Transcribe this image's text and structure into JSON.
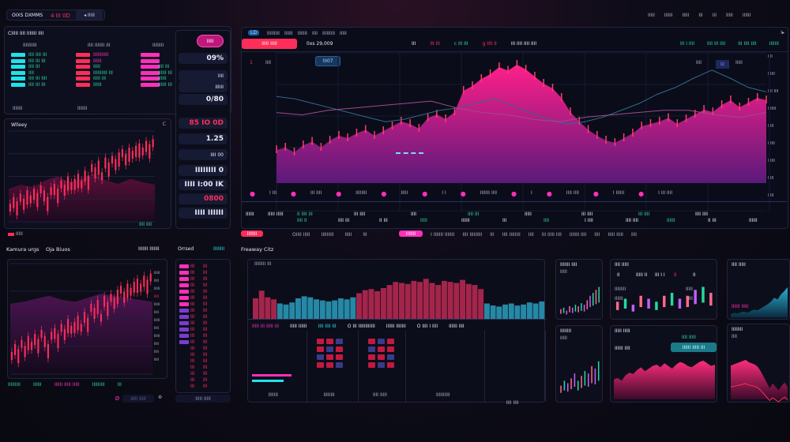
{
  "header": {
    "title": "OIXS DXMMS",
    "value": "4 III 0D",
    "button": "◂ IIIII",
    "top_right": [
      "IIIII",
      "IIIIII",
      "IIIII",
      "III",
      "III",
      "IIIII",
      "IIIIII"
    ]
  },
  "orderbook": {
    "heading": "CIIIII IIII IIIIIII IIII",
    "columns": [
      {
        "title": "IIIIIIIIII",
        "rows": [
          "IIII IIII III",
          "IIII III III",
          "IIII III",
          "IIII",
          "IIII III IIII",
          "IIII III III"
        ],
        "footer": "IIIIIII",
        "color": "#1ee3ea"
      },
      {
        "title": "IIII IIIIIII III",
        "rows": [
          "IIIIIIIIIII",
          "IIIIII",
          "IIIII",
          "IIIIIIIIII III",
          "IIIII III",
          "IIIIII"
        ],
        "footer": "IIIIIII",
        "color": "#ff2d5a"
      },
      {
        "title": "IIIIIIII",
        "rows": [
          "",
          "",
          "IIII III",
          "IIIIII III",
          "IIIIII",
          "IIIIII III"
        ],
        "footer": "",
        "color": "#ff2fb9"
      }
    ]
  },
  "side_stats": {
    "pill": "IIIII",
    "items": [
      "09%",
      "IIII",
      "IIIIII",
      "0/80",
      "85 IO 0D",
      "1.25",
      "IIII 00",
      "IIIIIIII 0",
      "IIII I:00 IK",
      "0800",
      "IIII IIIIII"
    ]
  },
  "left_chart": {
    "title": "Wlleey",
    "corner": "C",
    "legend": "IIIII",
    "footer": "IIII IIII"
  },
  "main": {
    "tab": "LD",
    "menu": [
      "IIIIIIIII",
      "IIIIII",
      "IIIIIII",
      "IIII",
      "IIIIIIIII",
      "IIIII"
    ],
    "trade_button": "IIIII IIIII",
    "price": "0xs 29,009",
    "tickers": [
      {
        "t": "III",
        "c": "wh"
      },
      {
        "t": "III III",
        "c": "red"
      },
      {
        "t": "c III III",
        "c": "grn"
      },
      {
        "t": "g IIII II",
        "c": "red"
      },
      {
        "t": "III IIII IIII IIII",
        "c": "wh"
      }
    ],
    "right_tickers": [
      "III I IIII",
      "IIII III IIII",
      "III IIII IIII",
      "IIIIIII"
    ],
    "interval": "1",
    "timeframe": "IIII",
    "select": "0I07",
    "chart_right": [
      "IIII",
      "IIIIII",
      "IIII IIII",
      "IIIIIII",
      "IIIII",
      "IIIIII",
      "IIIIII",
      "IIIII",
      "IIIII"
    ],
    "chart_controls": [
      "IIII",
      "Iz",
      "IIIII"
    ],
    "chart_data": {
      "type": "area",
      "area_values": [
        28,
        30,
        26,
        32,
        35,
        30,
        36,
        40,
        38,
        42,
        45,
        40,
        44,
        48,
        52,
        50,
        46,
        55,
        58,
        54,
        60,
        78,
        82,
        88,
        92,
        98,
        95,
        100,
        96,
        90,
        84,
        80,
        72,
        60,
        52,
        45,
        40,
        36,
        34,
        38,
        42,
        48,
        50,
        52,
        55,
        50,
        54,
        58,
        62,
        60,
        66,
        70,
        64,
        68,
        72,
        70
      ],
      "line_values": [
        72,
        70,
        66,
        62,
        58,
        54,
        50,
        52,
        56,
        60,
        62,
        66,
        70,
        64,
        58,
        52,
        48,
        50,
        54,
        60,
        66,
        74,
        80,
        88,
        95,
        88,
        80,
        76
      ],
      "overlay_values": [
        58,
        56,
        60,
        62,
        64,
        66,
        68,
        62,
        58,
        56,
        52,
        50,
        54,
        56,
        58,
        60,
        60,
        56,
        54,
        58
      ],
      "ylim": [
        0,
        110
      ]
    },
    "icon_row": [
      "I III",
      "III IIII",
      "IIIIIIII",
      "IIIII",
      "I I",
      "IIIIIII IIII",
      "I",
      "IIII IIII",
      "I IIIIII",
      "I III IIII"
    ],
    "table": [
      [
        "IIIIII",
        "IIIII IIIII"
      ],
      [
        "II IIII III",
        "III IIII",
        "IIII",
        "IIII III",
        "IIIII",
        "III IIII",
        "III IIII",
        "IIII IIII"
      ],
      [
        "IIII II",
        "IIII III",
        "II III",
        "IIIII",
        "IIIIII",
        "III",
        "IIII",
        "I IIII",
        "IIII IIII",
        "IIIIII",
        "II III",
        "IIIIII"
      ]
    ]
  },
  "button_row": {
    "red": "IIIIIII",
    "labels": [
      "OIIII IIIII",
      "IIIIIIIII",
      "IIIII",
      "III"
    ],
    "pink": "IIIIIII",
    "rest": [
      "I IIIIIII IIIIIII",
      "IIII IIIIIIIII",
      "III",
      "IIII IIIIIIII",
      "IIII",
      "III IIIII IIII",
      "IIIIIII IIII",
      "IIII",
      "IIIII IIIII",
      "IIII"
    ]
  },
  "bottom_left": {
    "title": "Kamura urgs",
    "subtitle": "Oja Biuos",
    "right": "IIIIIII IIIIIII",
    "chart_data": {
      "type": "candlestick",
      "values": [
        22,
        30,
        25,
        34,
        28,
        38,
        32,
        40,
        35,
        44,
        38,
        30,
        42,
        46,
        40,
        50,
        45,
        55,
        48,
        52,
        58,
        50,
        62,
        56,
        70,
        66,
        74,
        60,
        78,
        72,
        80,
        76,
        84,
        88,
        82,
        90,
        86,
        92,
        95,
        90,
        98,
        94,
        100
      ],
      "ylim": [
        0,
        110
      ]
    },
    "axis": [
      "IIIIII",
      "IIIII",
      "IIIIII",
      "IIIII",
      "IIIIII",
      "IIIII",
      "IIIIII",
      "IIIII",
      "IIIIII",
      "IIIII",
      "IIIII",
      "IIIII"
    ],
    "footer": [
      "IIIIIIIII",
      "IIIIII",
      "IIIIII IIIII IIIII",
      "IIIIIIIII",
      "III"
    ],
    "search": "IIIII IIIII"
  },
  "orders": {
    "title": "Orrsed",
    "link": "IIIIIIII",
    "rows": [
      [
        "III",
        "III"
      ],
      [
        "III",
        "III"
      ],
      [
        "III",
        "III"
      ],
      [
        "III",
        "III"
      ],
      [
        "III",
        "III"
      ],
      [
        "III",
        "III"
      ],
      [
        "III",
        "III"
      ],
      [
        "III",
        "III"
      ],
      [
        "III",
        "III"
      ],
      [
        "III",
        "III"
      ],
      [
        "III",
        "III"
      ],
      [
        "III",
        "III"
      ],
      [
        "III",
        "III"
      ],
      [
        "III",
        "III"
      ],
      [
        "III",
        "III"
      ],
      [
        "III",
        "III"
      ],
      [
        "III",
        "III"
      ],
      [
        "III",
        "III"
      ],
      [
        "III",
        "III"
      ],
      [
        "III",
        "III"
      ]
    ],
    "footer": "IIIII IIIII"
  },
  "middle": {
    "title": "Freaway Citz",
    "chart_label": "IIIIIIII III",
    "chart_data": {
      "type": "bar",
      "values": [
        40,
        55,
        42,
        38,
        30,
        28,
        32,
        40,
        44,
        42,
        38,
        36,
        34,
        36,
        40,
        38,
        42,
        50,
        56,
        58,
        54,
        60,
        66,
        72,
        70,
        68,
        74,
        72,
        78,
        70,
        66,
        74,
        72,
        70,
        76,
        68,
        66,
        58,
        30,
        26,
        24,
        28,
        30,
        26,
        28,
        32,
        30,
        34
      ],
      "ylim": [
        0,
        100
      ]
    },
    "tabs": [
      "IIIII III IIIII III",
      "IIIII IIIIII",
      "IIII IIII III",
      "O III IIIIIIIIIIII",
      "IIIIII IIIIIII",
      "O IIII I IIII",
      "IIIIII IIII"
    ],
    "sub_labels": [
      "IIIIIII",
      "IIIIIIII",
      "IIII IIIII",
      "IIIIIIIIII",
      "IIII IIII"
    ]
  },
  "cards": [
    {
      "title": "IIIIIII IIII",
      "tag": "IIIII",
      "values": [
        3,
        4,
        2,
        5,
        4,
        6,
        5,
        7,
        6,
        9,
        12,
        14,
        16,
        18
      ]
    },
    {
      "title": "IIIIIIII",
      "tag": "IIIII",
      "values": [
        4,
        6,
        5,
        7,
        9,
        6,
        8,
        10,
        9,
        12,
        11,
        14
      ]
    },
    {
      "title": "IIII IIIII",
      "items": [
        "II",
        "IIIII II",
        "III I I",
        "II",
        "II"
      ],
      "labels": [
        "IIIIIIII",
        "IIIIII",
        "IIIII",
        "IIIII"
      ],
      "values": [
        4,
        5,
        3,
        6,
        5,
        4,
        6,
        7,
        5,
        6,
        8,
        9,
        7
      ]
    },
    {
      "title": "IIIII IIIII",
      "right": "IIII IIIII",
      "field": "IIIIII IIII",
      "button": "IIIIII IIIII III",
      "values": [
        30,
        32,
        28,
        36,
        40,
        38,
        44,
        48,
        42,
        46,
        50,
        52,
        48,
        54,
        50,
        46,
        52,
        56,
        54,
        50,
        48,
        52,
        56,
        58,
        54,
        50,
        52
      ]
    },
    {
      "title": "IIII IIIII",
      "subtitle": "IIIIII IIIII",
      "values": [
        10,
        14,
        12,
        16,
        18,
        15,
        20,
        24,
        22,
        28,
        34,
        40,
        48,
        60,
        55,
        70,
        80,
        92
      ]
    },
    {
      "title": "IIIIIIII",
      "tag": "IIII",
      "values": [
        60,
        62,
        64,
        66,
        68,
        70,
        66,
        64,
        62,
        58,
        50,
        40,
        30,
        20,
        28,
        22,
        16,
        24,
        30,
        22
      ]
    }
  ],
  "colors": {
    "pink": "#ff2fb9",
    "red": "#ff2d5a",
    "cyan": "#1ee3ea",
    "green": "#27d8a0",
    "bg": "#0e0f1e"
  }
}
